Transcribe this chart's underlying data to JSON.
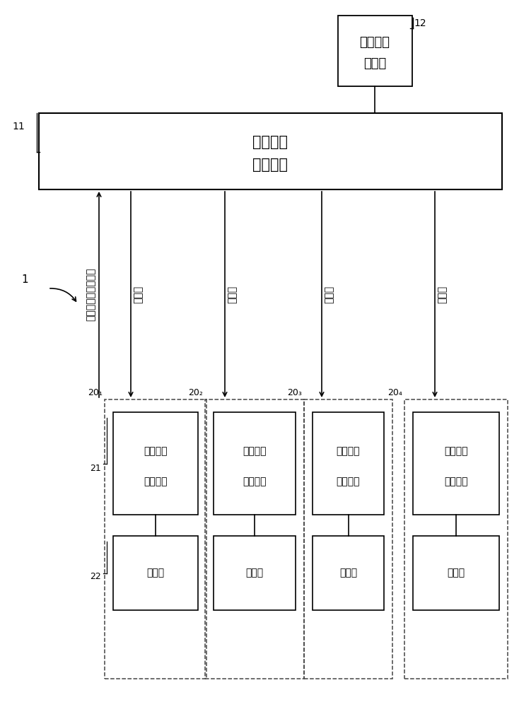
{
  "bg_color": "#ffffff",
  "line_color": "#000000",
  "dash_color": "#444444",
  "fig_width": 7.34,
  "fig_height": 10.0,
  "label_1": "1",
  "label_11": "11",
  "label_12": "12",
  "label_21": "21",
  "label_22": "22",
  "label_20_1": "20₁",
  "label_20_2": "20₂",
  "label_20_3": "20₃",
  "label_20_4": "20₄",
  "text_cpu": "中央运算处理器",
  "text_cpu_line1": "中央运算",
  "text_cpu_line2": "处理器",
  "text_recv_line1": "视频信号",
  "text_recv_line2": "接收装置",
  "text_send_line1": "视频信号",
  "text_send_line2": "发送装置",
  "text_camera": "照相机",
  "text_clock": "照相机视频信号时钟",
  "text_frame": "帧信号",
  "font_size_box": 13,
  "font_size_label": 10,
  "font_size_arrow_label": 11
}
